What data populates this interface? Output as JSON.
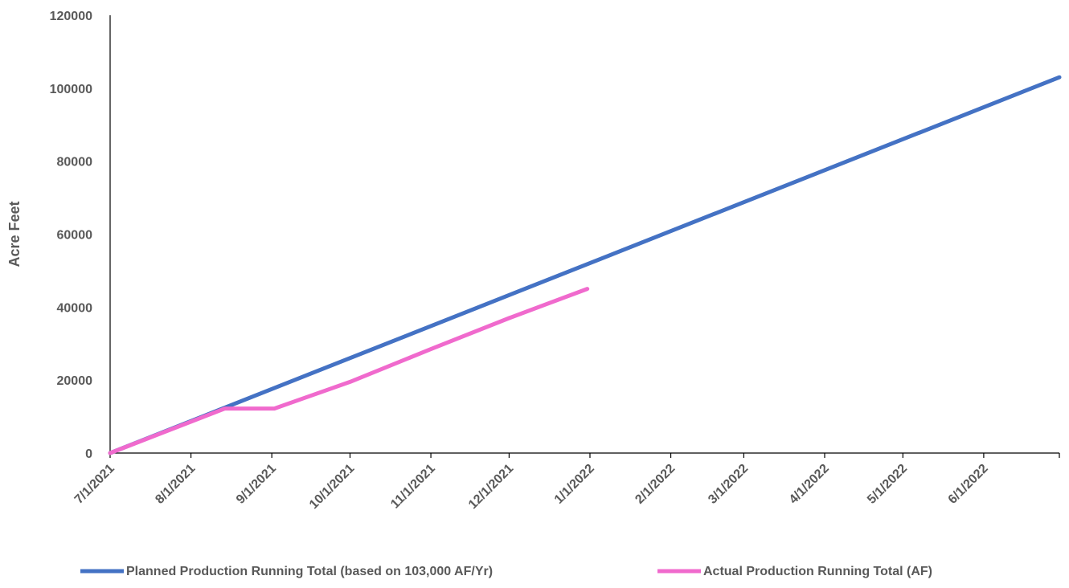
{
  "chart_data": {
    "type": "line",
    "ylabel": "Acre Feet",
    "xlabel": "",
    "ylim": [
      0,
      120000
    ],
    "yticks": [
      0,
      20000,
      40000,
      60000,
      80000,
      100000,
      120000
    ],
    "x_range": [
      "7/1/2021",
      "6/30/2022"
    ],
    "x_tick_labels": [
      "7/1/2021",
      "8/1/2021",
      "9/1/2021",
      "10/1/2021",
      "11/1/2021",
      "12/1/2021",
      "1/1/2022",
      "2/1/2022",
      "3/1/2022",
      "4/1/2022",
      "5/1/2022",
      "6/1/2022"
    ],
    "grid": false,
    "legend_position": "bottom",
    "series": [
      {
        "name": "Planned Production Running Total (based on 103,000 AF/Yr)",
        "color": "#4472C4",
        "points": [
          {
            "x": "7/1/2021",
            "y": 0
          },
          {
            "x": "6/30/2022",
            "y": 103000
          }
        ]
      },
      {
        "name": "Actual Production Running Total (AF)",
        "color": "#F06ACD",
        "points": [
          {
            "x": "7/1/2021",
            "y": 0
          },
          {
            "x": "8/14/2021",
            "y": 12200
          },
          {
            "x": "9/2/2021",
            "y": 12200
          },
          {
            "x": "10/1/2021",
            "y": 19500
          },
          {
            "x": "11/1/2021",
            "y": 28500
          },
          {
            "x": "12/1/2021",
            "y": 37000
          },
          {
            "x": "12/31/2021",
            "y": 45000
          }
        ]
      }
    ]
  }
}
